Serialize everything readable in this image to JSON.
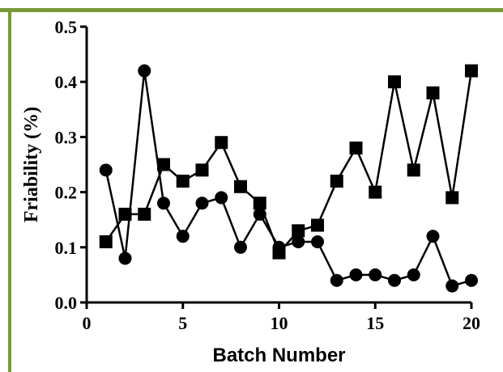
{
  "chart_data": {
    "type": "line",
    "title": "",
    "xlabel": "Batch Number",
    "ylabel": "Friability (%)",
    "xlim": [
      0,
      20
    ],
    "ylim": [
      0,
      0.5
    ],
    "xticks": [
      "0",
      "5",
      "10",
      "15",
      "20"
    ],
    "yticks": [
      "0.0",
      "0.1",
      "0.2",
      "0.3",
      "0.4",
      "0.5"
    ],
    "grid": false,
    "legend": "none",
    "x": [
      1,
      2,
      3,
      4,
      5,
      6,
      7,
      8,
      9,
      10,
      11,
      12,
      13,
      14,
      15,
      16,
      17,
      18,
      19,
      20
    ],
    "series": [
      {
        "marker": "circle",
        "values": [
          0.24,
          0.08,
          0.42,
          0.18,
          0.12,
          0.18,
          0.19,
          0.1,
          0.16,
          0.1,
          0.11,
          0.11,
          0.04,
          0.05,
          0.05,
          0.04,
          0.05,
          0.12,
          0.03,
          0.04
        ]
      },
      {
        "marker": "square",
        "values": [
          0.11,
          0.16,
          0.16,
          0.25,
          0.22,
          0.24,
          0.29,
          0.21,
          0.18,
          0.09,
          0.13,
          0.14,
          0.22,
          0.28,
          0.2,
          0.4,
          0.24,
          0.38,
          0.19,
          0.42
        ]
      }
    ]
  }
}
